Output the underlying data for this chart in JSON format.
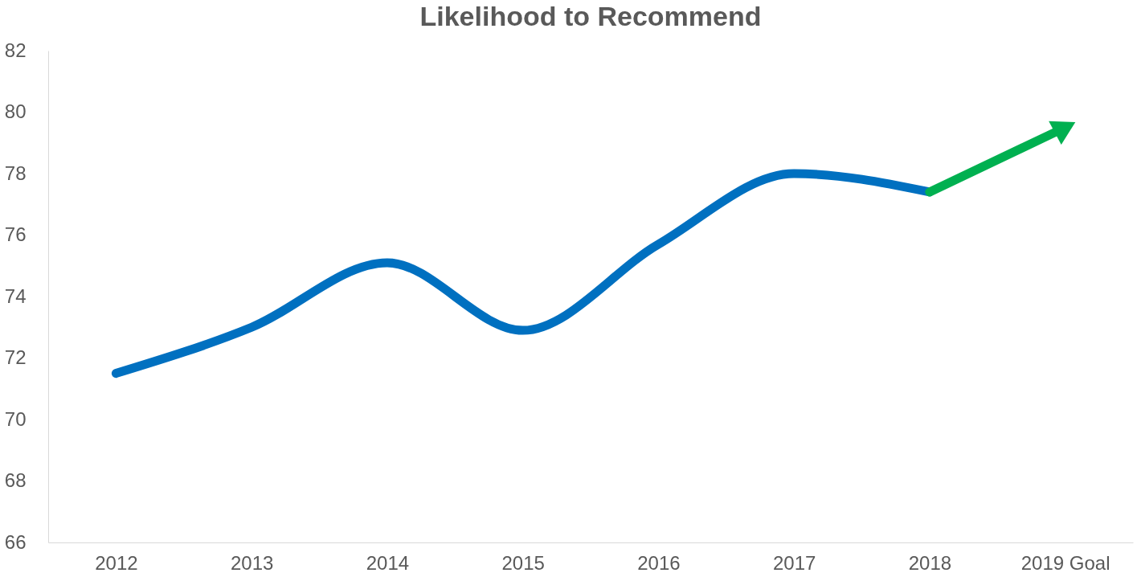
{
  "chart_data": {
    "type": "line",
    "title": "Likelihood to Recommend",
    "categories": [
      "2012",
      "2013",
      "2014",
      "2015",
      "2016",
      "2017",
      "2018",
      "2019 Goal"
    ],
    "series": [
      {
        "color": "#0070c0",
        "values": [
          71.5,
          73.0,
          75.1,
          72.9,
          75.7,
          78.0,
          77.4,
          null
        ]
      },
      {
        "color": "#00b050",
        "values": [
          null,
          null,
          null,
          null,
          null,
          null,
          77.4,
          79.5
        ],
        "marker": "triangle"
      }
    ],
    "ylim": [
      66,
      82
    ],
    "yticks": [
      66,
      68,
      70,
      72,
      74,
      76,
      78,
      80,
      82
    ],
    "marker": "none"
  }
}
